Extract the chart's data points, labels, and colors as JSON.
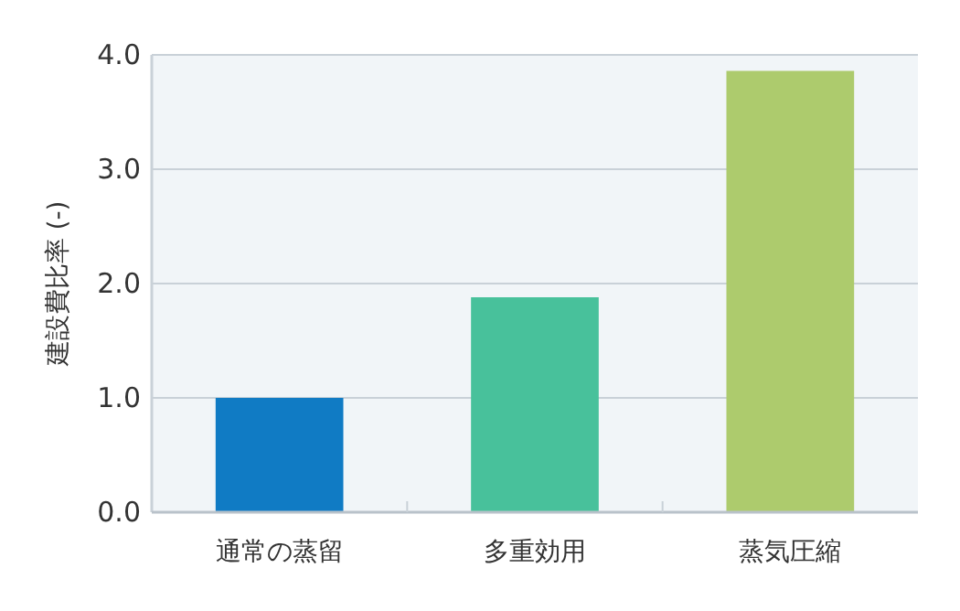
{
  "chart_data": {
    "type": "bar",
    "ylabel": "建設費比率 (-)",
    "categories": [
      "通常の蒸留",
      "多重効用",
      "蒸気圧縮"
    ],
    "values": [
      1.0,
      1.88,
      3.86
    ],
    "colors": [
      "#107bc4",
      "#48c19b",
      "#adcb6d"
    ],
    "ylim": [
      0,
      4
    ],
    "yticks": [
      {
        "value": 0,
        "label": "0.0"
      },
      {
        "value": 1,
        "label": "1.0"
      },
      {
        "value": 2,
        "label": "2.0"
      },
      {
        "value": 3,
        "label": "3.0"
      },
      {
        "value": 4,
        "label": "4.0"
      }
    ],
    "grid": "y"
  }
}
